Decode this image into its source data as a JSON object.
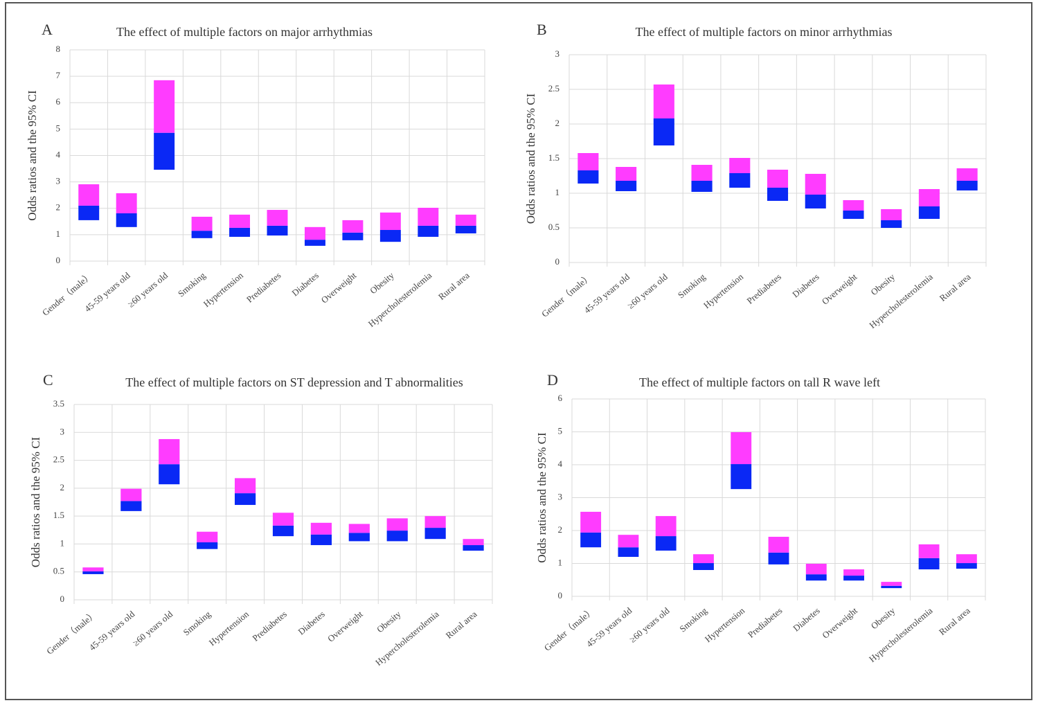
{
  "chart_data": [
    {
      "type": "bar",
      "panel": "A",
      "title": "The effect of multiple factors on major arrhythmias",
      "y_label": "Odds ratios and the 95% CI",
      "categories": [
        "Gender（male）",
        "45-59 years old",
        "≥60 years old",
        "Smoking",
        "Hypertension",
        "Prediabetes",
        "Diabetes",
        "Overweight",
        "Obesity",
        "Hypercholesterolemia",
        "Rural area"
      ],
      "ci_lower": [
        1.55,
        1.29,
        3.46,
        0.87,
        0.92,
        0.97,
        0.58,
        0.79,
        0.73,
        0.92,
        1.05
      ],
      "values": [
        2.1,
        1.81,
        4.86,
        1.15,
        1.26,
        1.34,
        0.81,
        1.08,
        1.18,
        1.34,
        1.34
      ],
      "ci_upper": [
        2.91,
        2.57,
        6.85,
        1.68,
        1.76,
        1.94,
        1.29,
        1.55,
        1.84,
        2.02,
        1.76
      ],
      "lower_color": "#0a28f5",
      "upper_color": "#ff3cff",
      "ylim": [
        0,
        8
      ],
      "yticks": [
        0,
        1,
        2,
        3,
        4,
        5,
        6,
        7,
        8
      ],
      "grid": true
    },
    {
      "type": "bar",
      "panel": "B",
      "title": "The effect of multiple factors on minor arrhythmias",
      "y_label": "Odds ratios and the 95% CI",
      "categories": [
        "Gender（male）",
        "45-59 years old",
        "≥60 years old",
        "Smoking",
        "Hypertension",
        "Prediabetes",
        "Diabetes",
        "Overweight",
        "Obesity",
        "Hypercholesterolemia",
        "Rural area"
      ],
      "ci_lower": [
        1.14,
        1.03,
        1.69,
        1.02,
        1.08,
        0.89,
        0.78,
        0.63,
        0.5,
        0.63,
        1.04
      ],
      "values": [
        1.33,
        1.18,
        2.08,
        1.18,
        1.29,
        1.08,
        0.98,
        0.75,
        0.61,
        0.81,
        1.18
      ],
      "ci_upper": [
        1.58,
        1.38,
        2.57,
        1.41,
        1.51,
        1.34,
        1.28,
        0.9,
        0.77,
        1.06,
        1.36
      ],
      "lower_color": "#0a28f5",
      "upper_color": "#ff3cff",
      "ylim": [
        0,
        3
      ],
      "yticks": [
        0,
        0.5,
        1,
        1.5,
        2,
        2.5,
        3
      ],
      "grid": true
    },
    {
      "type": "bar",
      "panel": "C",
      "title": "The effect of multiple factors on ST depression and T abnormalities",
      "y_label": "Odds ratios and the 95% CI",
      "categories": [
        "Gender（male）",
        "45-59 years old",
        "≥60 years old",
        "Smoking",
        "Hypertension",
        "Prediabetes",
        "Diabetes",
        "Overweight",
        "Obesity",
        "Hypercholesterolemia",
        "Rural area"
      ],
      "ci_lower": [
        0.46,
        1.59,
        2.07,
        0.91,
        1.7,
        1.14,
        0.98,
        1.05,
        1.05,
        1.09,
        0.88
      ],
      "values": [
        0.51,
        1.77,
        2.43,
        1.03,
        1.91,
        1.33,
        1.17,
        1.2,
        1.24,
        1.29,
        0.98
      ],
      "ci_upper": [
        0.58,
        1.99,
        2.88,
        1.22,
        2.18,
        1.56,
        1.38,
        1.36,
        1.46,
        1.5,
        1.09
      ],
      "lower_color": "#0a28f5",
      "upper_color": "#ff3cff",
      "ylim": [
        0,
        3.5
      ],
      "yticks": [
        0,
        0.5,
        1,
        1.5,
        2,
        2.5,
        3,
        3.5
      ],
      "grid": true
    },
    {
      "type": "bar",
      "panel": "D",
      "title": "The effect of multiple factors on tall R wave left",
      "y_label": "Odds ratios and the 95% CI",
      "categories": [
        "Gender（male）",
        "45-59 years old",
        "≥60 years old",
        "Smoking",
        "Hypertension",
        "Prediabetes",
        "Diabetes",
        "Overweight",
        "Obesity",
        "Hypercholesterolemia",
        "Rural area"
      ],
      "ci_lower": [
        1.49,
        1.2,
        1.39,
        0.8,
        3.26,
        0.97,
        0.48,
        0.48,
        0.25,
        0.82,
        0.84
      ],
      "values": [
        1.94,
        1.49,
        1.83,
        1.01,
        4.02,
        1.33,
        0.67,
        0.63,
        0.32,
        1.16,
        1.01
      ],
      "ci_upper": [
        2.57,
        1.87,
        2.44,
        1.28,
        4.99,
        1.81,
        0.99,
        0.82,
        0.44,
        1.58,
        1.28
      ],
      "lower_color": "#0a28f5",
      "upper_color": "#ff3cff",
      "ylim": [
        0,
        6
      ],
      "yticks": [
        0,
        1,
        2,
        3,
        4,
        5,
        6
      ],
      "grid": true
    }
  ]
}
